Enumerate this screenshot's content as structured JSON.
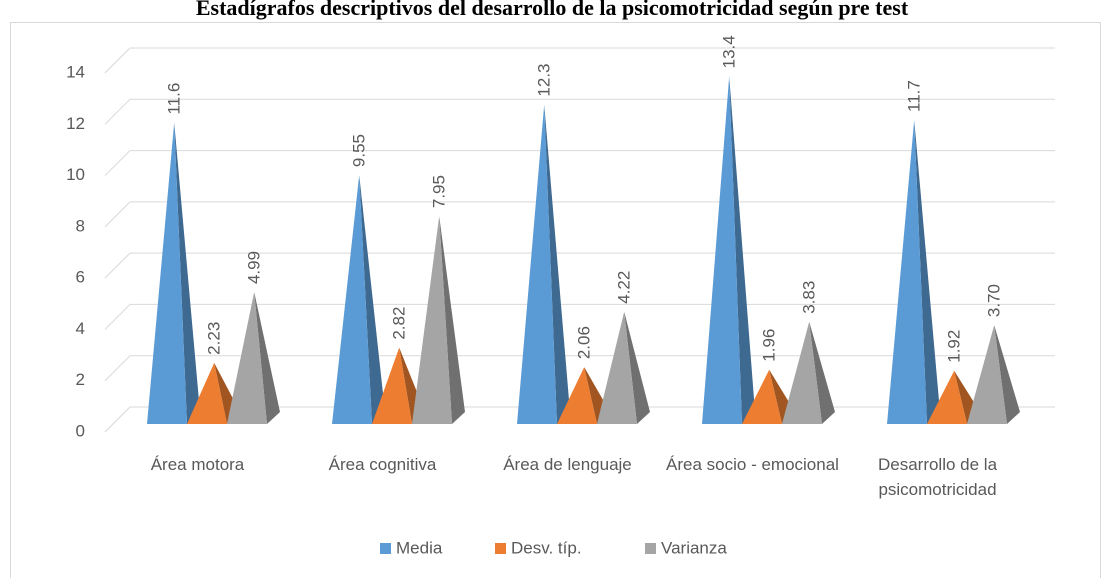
{
  "chart_data": {
    "type": "pyramid",
    "title": "Estadígrafos descriptivos del desarrollo de la psicomotricidad según pre test",
    "categories": [
      "Área motora",
      "Área cognitiva",
      "Área de lenguaje",
      "Área socio - emocional",
      "Desarrollo de la psicomotricidad"
    ],
    "series": [
      {
        "name": "Media",
        "color": "#5b9bd5",
        "values": [
          11.6,
          9.55,
          12.3,
          13.4,
          11.7
        ]
      },
      {
        "name": "Desv. típ.",
        "color": "#ed7d31",
        "values": [
          2.23,
          2.82,
          2.06,
          1.96,
          1.92
        ]
      },
      {
        "name": "Varianza",
        "color": "#a5a5a5",
        "values": [
          4.99,
          7.95,
          4.22,
          3.83,
          3.7
        ],
        "value_labels": [
          "4.99",
          "7.95",
          "4.22",
          "3.83",
          "3.70"
        ]
      }
    ],
    "ylim": [
      0,
      14
    ],
    "yticks": [
      0,
      2,
      4,
      6,
      8,
      10,
      12,
      14
    ],
    "grid": true,
    "legend": "bottom"
  }
}
